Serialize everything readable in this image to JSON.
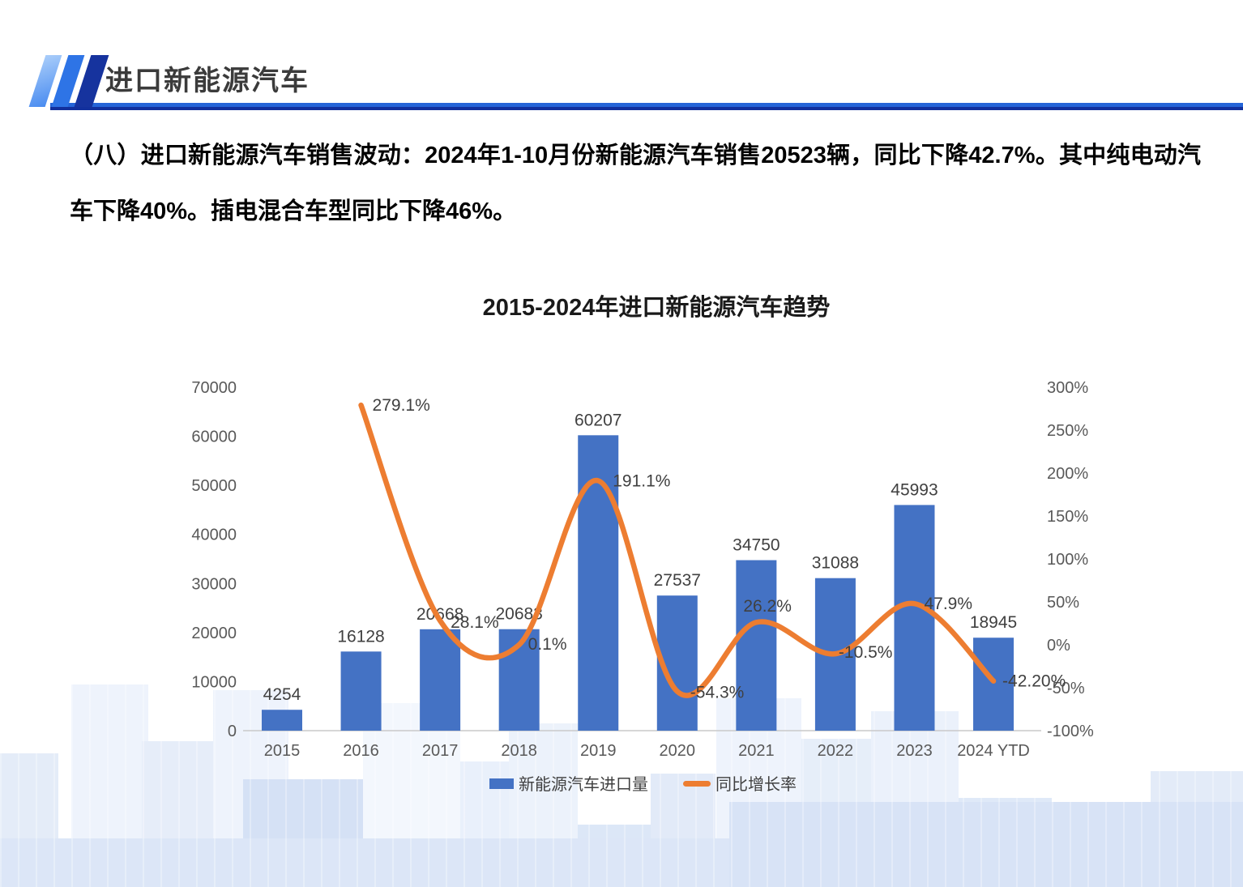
{
  "header": {
    "title": "进口新能源汽车"
  },
  "body": {
    "paragraph": "（八）进口新能源汽车销售波动：2024年1-10月份新能源汽车销售20523辆，同比下降42.7%。其中纯电动汽车下降40%。插电混合车型同比下降46%。"
  },
  "chart_data": {
    "type": "combo",
    "title": "2015-2024年进口新能源汽车趋势",
    "categories": [
      "2015",
      "2016",
      "2017",
      "2018",
      "2019",
      "2020",
      "2021",
      "2022",
      "2023",
      "2024 YTD"
    ],
    "series": [
      {
        "name": "新能源汽车进口量",
        "type": "bar",
        "color": "#4472C4",
        "axis": "left",
        "values": [
          4254,
          16128,
          20668,
          20683,
          60207,
          27537,
          34750,
          31088,
          45993,
          18945
        ],
        "labels": [
          "4254",
          "16128",
          "20668",
          "20683",
          "60207",
          "27537",
          "34750",
          "31088",
          "45993",
          "18945"
        ]
      },
      {
        "name": "同比增长率",
        "type": "line",
        "color": "#ED7D31",
        "axis": "right",
        "values": [
          null,
          279.1,
          28.1,
          0.1,
          191.1,
          -54.3,
          26.2,
          -10.5,
          47.9,
          -42.2
        ],
        "labels": [
          null,
          "279.1%",
          "28.1%",
          "0.1%",
          "191.1%",
          "-54.3%",
          "26.2%",
          "-10.5%",
          "47.9%",
          "-42.20%"
        ],
        "label_offsets": [
          null,
          [
            14,
            0
          ],
          [
            13,
            2
          ],
          [
            11,
            -1
          ],
          [
            18,
            0
          ],
          [
            16,
            1
          ],
          [
            -16,
            -20
          ],
          [
            4,
            -2
          ],
          [
            12,
            0
          ],
          [
            11,
            0
          ]
        ]
      }
    ],
    "left_axis": {
      "min": 0,
      "max": 300,
      "ticks": [
        "0",
        "10000",
        "20000",
        "30000",
        "40000",
        "50000",
        "60000",
        "70000"
      ],
      "min_val": 0,
      "max_val": 70000
    },
    "right_axis": {
      "min": -100,
      "max": 300,
      "ticks": [
        "-100%",
        "-50%",
        "0%",
        "50%",
        "100%",
        "150%",
        "200%",
        "250%",
        "300%"
      ]
    },
    "grid": false,
    "legend_position": "bottom",
    "colors": {
      "axis_line": "#c9c9c9",
      "tick_text": "#595959",
      "data_label": "#404040"
    }
  }
}
